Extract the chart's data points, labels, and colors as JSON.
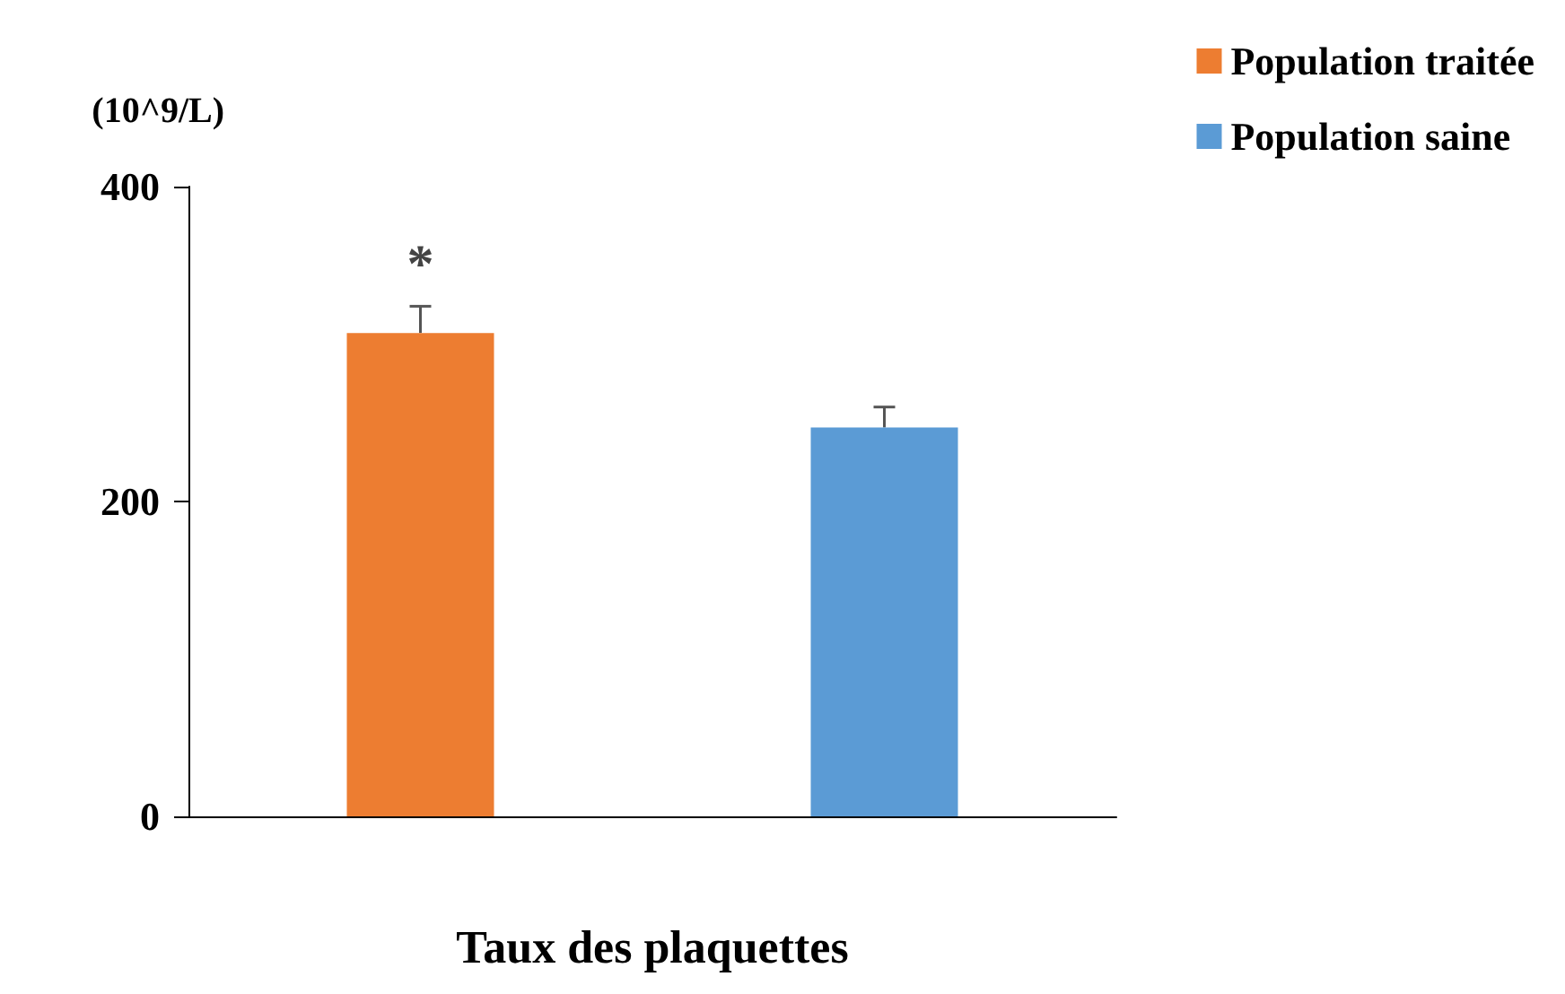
{
  "chart_data": {
    "type": "bar",
    "xlabel": "Taux des plaquettes",
    "ylabel": "(10^9/L)",
    "categories": [
      null,
      null
    ],
    "series": [
      {
        "name": "Population traitée",
        "color": "#ed7d31",
        "values": [
          307,
          null
        ],
        "errors": [
          17,
          null
        ]
      },
      {
        "name": "Population saine",
        "color": "#5b9bd5",
        "values": [
          null,
          247
        ],
        "errors": [
          null,
          13
        ]
      }
    ],
    "ylim": [
      0,
      400
    ],
    "yticks": [
      0,
      200,
      400
    ],
    "grid": false,
    "legend": "top right",
    "annotations": [
      "*"
    ]
  }
}
